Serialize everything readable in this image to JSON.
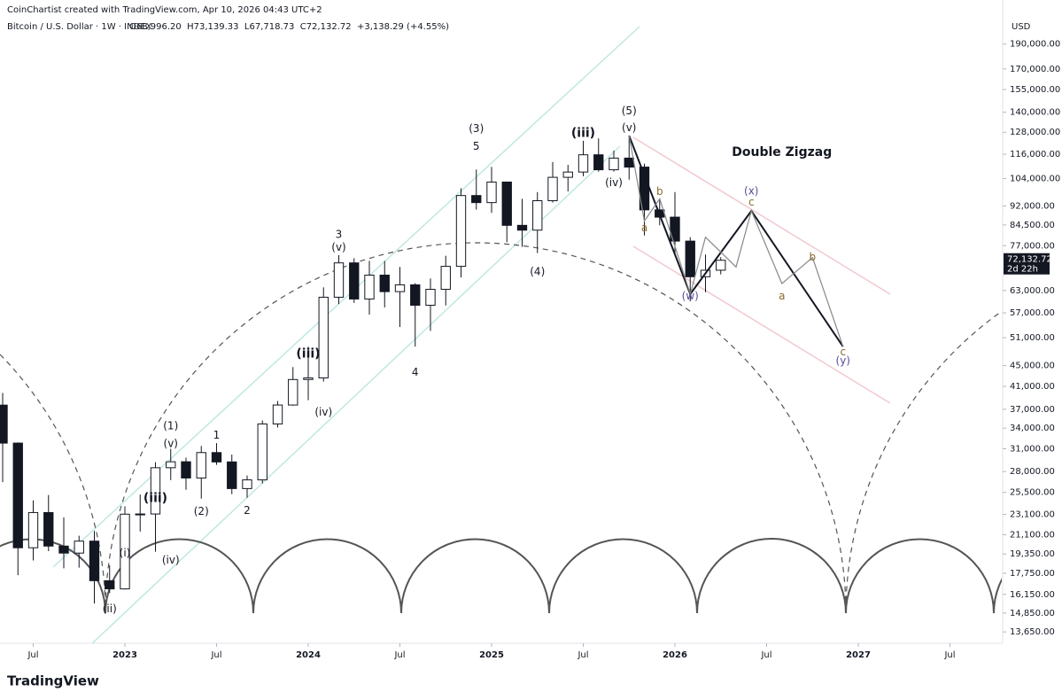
{
  "chart_data": {
    "type": "candlestick",
    "credit": "CoinChartist created with TradingView.com, Apr 10, 2026 04:43 UTC+2",
    "title": "Bitcoin / U.S. Dollar · 1W · INDEX",
    "ohlc_text": "O68,996.20  H73,139.33  L67,718.73  C72,132.72  +3,138.29 (+4.55%)",
    "currency": "USD",
    "last_price_label": "72,132.72",
    "countdown": "2d 22h",
    "brand": "TradingView",
    "log_scale": true,
    "up_color": "#ffffff",
    "down_color": "#131722",
    "x": [
      "2022-05",
      "2022-06",
      "2022-07",
      "2022-08",
      "2022-09",
      "2022-10",
      "2022-11",
      "2022-12",
      "2023-01",
      "2023-02",
      "2023-03",
      "2023-04",
      "2023-05",
      "2023-06",
      "2023-07",
      "2023-08",
      "2023-09",
      "2023-10",
      "2023-11",
      "2023-12",
      "2024-01",
      "2024-02",
      "2024-03",
      "2024-04",
      "2024-05",
      "2024-06",
      "2024-07",
      "2024-08",
      "2024-09",
      "2024-10",
      "2024-11",
      "2024-12",
      "2025-01",
      "2025-02",
      "2025-03",
      "2025-04",
      "2025-05",
      "2025-06",
      "2025-07",
      "2025-08",
      "2025-09",
      "2025-10",
      "2025-11",
      "2025-12",
      "2026-01",
      "2026-02",
      "2026-03",
      "2026-04"
    ],
    "open": [
      37700,
      31800,
      19900,
      23300,
      20050,
      19430,
      20500,
      17170,
      16550,
      23130,
      23150,
      28480,
      29250,
      27200,
      30480,
      29230,
      25940,
      26970,
      34650,
      37720,
      42280,
      42580,
      61130,
      71290,
      60640,
      67490,
      62680,
      64620,
      58970,
      63330,
      70200,
      96400,
      93400,
      102400,
      84350,
      82550,
      94200,
      104600,
      107100,
      115700,
      108200,
      114000,
      109500,
      90400,
      87500,
      78600,
      67000,
      68996.2
    ],
    "high": [
      39800,
      31900,
      24600,
      25200,
      22800,
      21000,
      21450,
      18400,
      23950,
      25250,
      29200,
      31000,
      29800,
      31400,
      31800,
      30200,
      27500,
      35200,
      38400,
      44700,
      48950,
      63900,
      73800,
      72800,
      71950,
      71900,
      70000,
      65100,
      66500,
      73600,
      99600,
      108300,
      109600,
      102500,
      95000,
      97900,
      112000,
      110600,
      123200,
      124500,
      117900,
      126200,
      111200,
      94600,
      97900,
      80000,
      74000,
      73139.33
    ],
    "low": [
      26700,
      17600,
      18800,
      19600,
      18150,
      18200,
      15500,
      16250,
      16500,
      21400,
      19550,
      26950,
      25800,
      24800,
      28850,
      25300,
      24900,
      26550,
      34100,
      37600,
      38550,
      41900,
      59300,
      59600,
      56550,
      58400,
      53500,
      49000,
      52550,
      58900,
      66800,
      90500,
      89200,
      78200,
      76600,
      74500,
      93400,
      98200,
      105100,
      107300,
      107300,
      103500,
      80600,
      84400,
      74500,
      60000,
      62500,
      67718.73
    ],
    "close": [
      31800,
      19900,
      23300,
      20050,
      19430,
      20500,
      17170,
      16550,
      23130,
      23150,
      28480,
      29250,
      27200,
      30480,
      29230,
      25940,
      26970,
      34650,
      37720,
      42280,
      42580,
      61130,
      71290,
      60640,
      67490,
      62680,
      64620,
      58970,
      63330,
      70200,
      96400,
      93400,
      102400,
      84350,
      82550,
      94200,
      104600,
      107100,
      115700,
      108200,
      114000,
      109500,
      90400,
      87500,
      78600,
      67000,
      68990,
      72132.72
    ],
    "xlim": [
      "2022-05",
      "2027-09"
    ],
    "xticks": [
      {
        "value": "2022-07",
        "label": "Jul"
      },
      {
        "value": "2023-01",
        "label": "2023"
      },
      {
        "value": "2023-07",
        "label": "Jul"
      },
      {
        "value": "2024-01",
        "label": "2024"
      },
      {
        "value": "2024-07",
        "label": "Jul"
      },
      {
        "value": "2025-01",
        "label": "2025"
      },
      {
        "value": "2025-07",
        "label": "Jul"
      },
      {
        "value": "2026-01",
        "label": "2026"
      },
      {
        "value": "2026-07",
        "label": "Jul"
      },
      {
        "value": "2027-01",
        "label": "2027"
      },
      {
        "value": "2027-07",
        "label": "Jul"
      }
    ],
    "ylim": [
      12270,
      213800
    ],
    "yticks": [
      {
        "value": 190000,
        "label": "190,000.00"
      },
      {
        "value": 170000,
        "label": "170,000.00"
      },
      {
        "value": 155000,
        "label": "155,000.00"
      },
      {
        "value": 140000,
        "label": "140,000.00"
      },
      {
        "value": 128000,
        "label": "128,000.00"
      },
      {
        "value": 116000,
        "label": "116,000.00"
      },
      {
        "value": 104000,
        "label": "104,000.00"
      },
      {
        "value": 92000,
        "label": "92,000.00"
      },
      {
        "value": 84500,
        "label": "84,500.00"
      },
      {
        "value": 77000,
        "label": "77,000.00"
      },
      {
        "value": 63000,
        "label": "63,000.00"
      },
      {
        "value": 57000,
        "label": "57,000.00"
      },
      {
        "value": 51000,
        "label": "51,000.00"
      },
      {
        "value": 45000,
        "label": "45,000.00"
      },
      {
        "value": 41000,
        "label": "41,000.00"
      },
      {
        "value": 37000,
        "label": "37,000.00"
      },
      {
        "value": 34000,
        "label": "34,000.00"
      },
      {
        "value": 31000,
        "label": "31,000.00"
      },
      {
        "value": 28000,
        "label": "28,000.00"
      },
      {
        "value": 25500,
        "label": "25,500.00"
      },
      {
        "value": 23100,
        "label": "23,100.00"
      },
      {
        "value": 21100,
        "label": "21,100.00"
      },
      {
        "value": 19350,
        "label": "19,350.00"
      },
      {
        "value": 17750,
        "label": "17,750.00"
      },
      {
        "value": 16150,
        "label": "16,150.00"
      },
      {
        "value": 14850,
        "label": "14,850.00"
      },
      {
        "value": 13650,
        "label": "13,650.00"
      }
    ],
    "projections": [
      {
        "color": "#131722",
        "x": [
          "2025-10",
          "2026-02",
          "2026-06",
          "2026-12"
        ],
        "values": [
          126000,
          62000,
          90000,
          49000
        ]
      },
      {
        "color": "#888888",
        "x": [
          "2025-10",
          "2025-11",
          "2025-12",
          "2026-02",
          "2026-03",
          "2026-05",
          "2026-06",
          "2026-08",
          "2026-10",
          "2026-12"
        ],
        "values": [
          126000,
          86000,
          95000,
          62000,
          80000,
          70000,
          90000,
          65000,
          73000,
          49000
        ]
      }
    ],
    "annotations": [
      {
        "text": "(1)",
        "x": "2023-04",
        "y": 34300
      },
      {
        "text": "(2)",
        "x": "2023-06",
        "y": 23400
      },
      {
        "text": "1",
        "x": "2023-07",
        "y": 32900
      },
      {
        "text": "2",
        "x": "2023-09",
        "y": 23500
      },
      {
        "text": "3",
        "x": "2024-03",
        "y": 80900
      },
      {
        "text": "4",
        "x": "2024-08",
        "y": 43600
      },
      {
        "text": "(3)",
        "x": "2024-12",
        "y": 129800
      },
      {
        "text": "5",
        "x": "2024-12",
        "y": 120000
      },
      {
        "text": "(4)",
        "x": "2025-04",
        "y": 68500
      },
      {
        "text": "(5)",
        "x": "2025-10",
        "y": 140600
      },
      {
        "text": "(v)",
        "x": "2025-10",
        "y": 130400
      },
      {
        "text": "(iii)",
        "x": "2025-07",
        "y": 127300
      },
      {
        "text": "(iv)",
        "x": "2025-09",
        "y": 101900
      },
      {
        "text": "(v)",
        "x": "2024-03",
        "y": 76300
      },
      {
        "text": "(iii)",
        "x": "2024-01",
        "y": 47400
      },
      {
        "text": "(iv)",
        "x": "2024-02",
        "y": 36500
      },
      {
        "text": "(ii)",
        "x": "2022-12",
        "y": 15100
      },
      {
        "text": "(i)",
        "x": "2023-01",
        "y": 19400
      },
      {
        "text": "(iii)",
        "x": "2023-03",
        "y": 24800
      },
      {
        "text": "(iv)",
        "x": "2023-04",
        "y": 18800
      },
      {
        "text": "(v)",
        "x": "2023-04",
        "y": 31700
      },
      {
        "text": "Double Zigzag",
        "x": "2026-08",
        "y": 117000
      },
      {
        "text": "(w)",
        "x": "2026-02",
        "y": 61300,
        "color": "#5b4b9a"
      },
      {
        "text": "(x)",
        "x": "2026-06",
        "y": 98300,
        "color": "#5b4b9a"
      },
      {
        "text": "(y)",
        "x": "2026-12",
        "y": 45900,
        "color": "#5b4b9a"
      },
      {
        "text": "a",
        "x": "2025-11",
        "y": 83300,
        "color": "#8b6a2b"
      },
      {
        "text": "b",
        "x": "2025-12",
        "y": 98000,
        "color": "#8b6a2b"
      },
      {
        "text": "c",
        "x": "2026-06",
        "y": 93400,
        "color": "#8b6a2b"
      },
      {
        "text": "a",
        "x": "2026-08",
        "y": 61300,
        "color": "#8b6a2b"
      },
      {
        "text": "b",
        "x": "2026-10",
        "y": 73100,
        "color": "#8b6a2b"
      },
      {
        "text": "c",
        "x": "2026-12",
        "y": 47800,
        "color": "#8b6a2b"
      }
    ]
  }
}
